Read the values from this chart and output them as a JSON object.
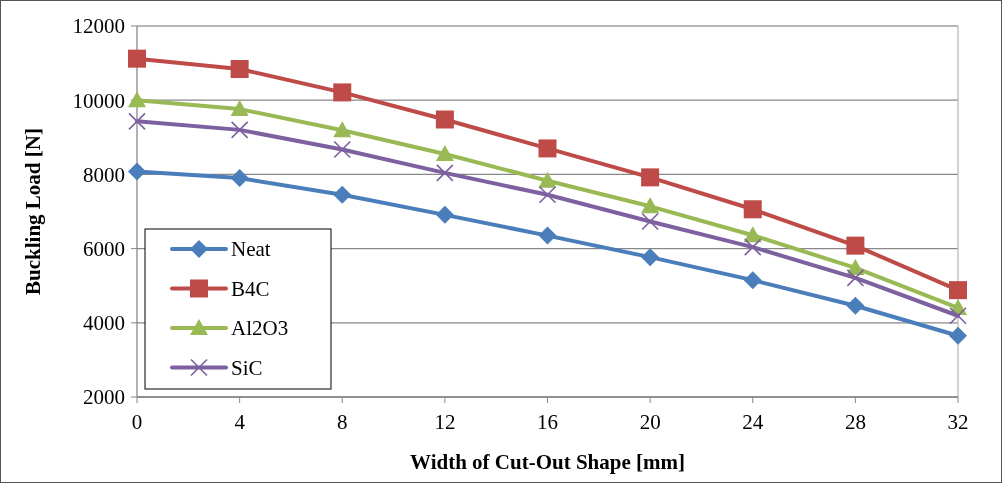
{
  "chart_data": {
    "type": "line",
    "xlabel": "Width of Cut-Out Shape [mm]",
    "ylabel": "Buckling Load [N]",
    "x": [
      0,
      4,
      8,
      12,
      16,
      20,
      24,
      28,
      32
    ],
    "series": [
      {
        "name": "Neat",
        "color": "#4a7ebb",
        "marker": "diamond",
        "values": [
          8080,
          7900,
          7450,
          6910,
          6350,
          5770,
          5150,
          4460,
          3650
        ]
      },
      {
        "name": "B4C",
        "color": "#be4b48",
        "marker": "square",
        "values": [
          11120,
          10840,
          10210,
          9480,
          8700,
          7920,
          7060,
          6080,
          4880
        ]
      },
      {
        "name": "Al2O3",
        "color": "#98b954",
        "marker": "triangle",
        "values": [
          10000,
          9760,
          9190,
          8550,
          7830,
          7140,
          6360,
          5480,
          4400
        ]
      },
      {
        "name": "SiC",
        "color": "#7d60a0",
        "marker": "cross",
        "values": [
          9430,
          9200,
          8670,
          8040,
          7450,
          6730,
          6040,
          5210,
          4190
        ]
      }
    ],
    "xlim": [
      0,
      32
    ],
    "xticks": [
      0,
      4,
      8,
      12,
      16,
      20,
      24,
      28,
      32
    ],
    "ylim": [
      2000,
      12000
    ],
    "yticks": [
      2000,
      4000,
      6000,
      8000,
      10000,
      12000
    ],
    "grid": "y",
    "legend": "bottom left",
    "line_style": "solid"
  }
}
